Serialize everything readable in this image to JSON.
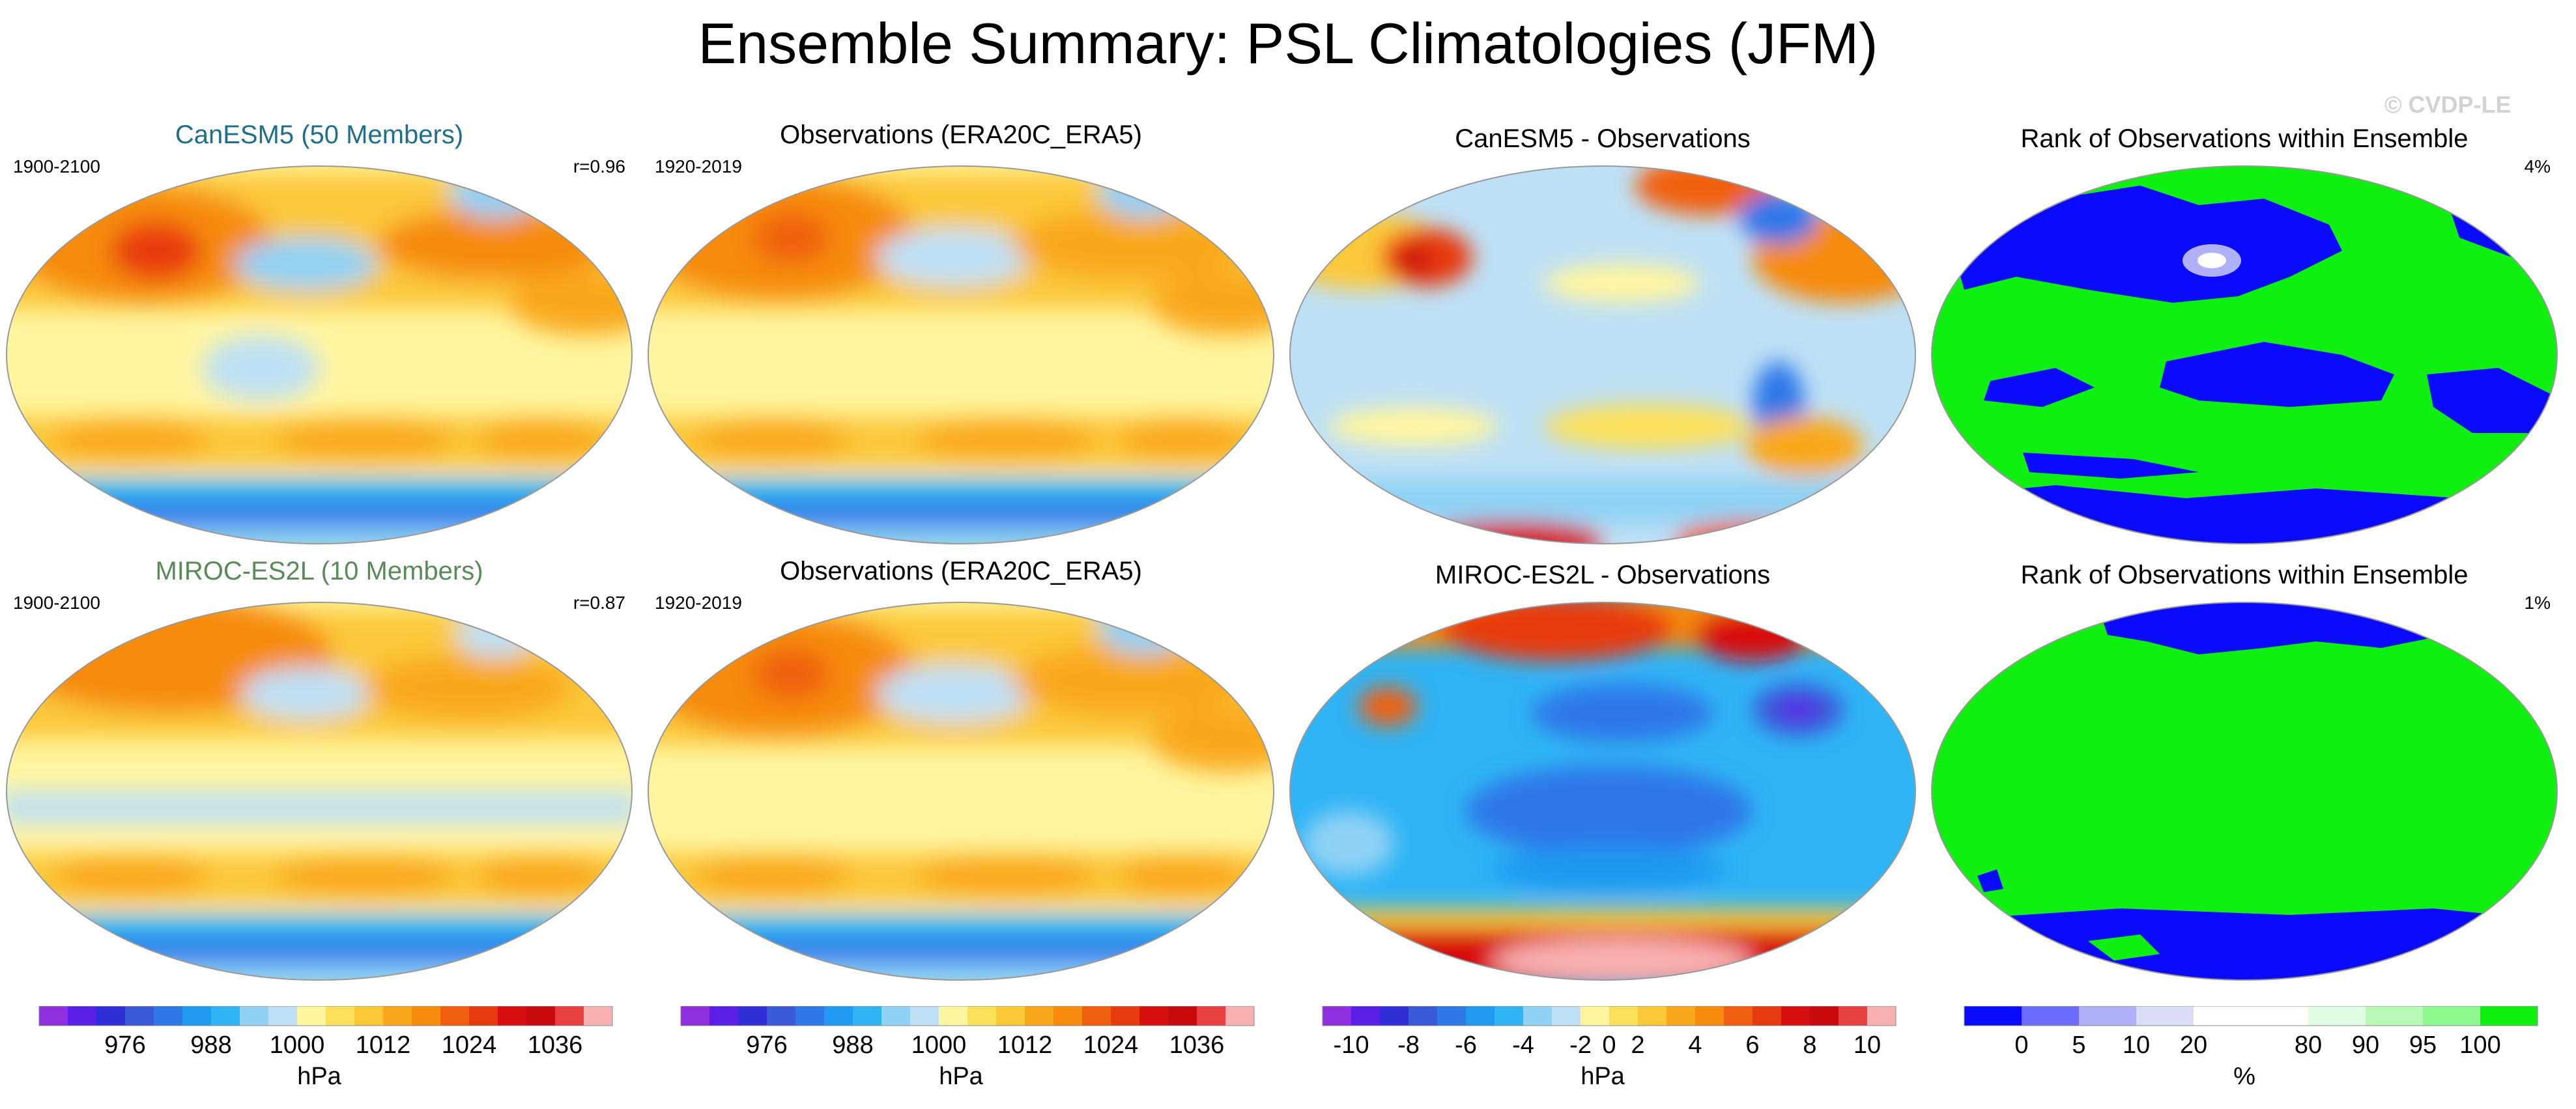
{
  "title": "Ensemble Summary: PSL Climatologies (JFM)",
  "watermark": "© CVDP-LE",
  "rows": [
    {
      "model": {
        "title": "CanESM5 (50 Members)",
        "title_color": "#1f6f8b",
        "period": "1900-2100",
        "corr": "r=0.96"
      },
      "obs": {
        "title": "Observations (ERA20C_ERA5)",
        "period": "1920-2019"
      },
      "diff": {
        "title": "CanESM5 - Observations"
      },
      "rank": {
        "title": "Rank of Observations within Ensemble",
        "pct": "4%"
      }
    },
    {
      "model": {
        "title": "MIROC-ES2L (10 Members)",
        "title_color": "#5a8a5a",
        "period": "1900-2100",
        "corr": "r=0.87"
      },
      "obs": {
        "title": "Observations (ERA20C_ERA5)",
        "period": "1920-2019"
      },
      "diff": {
        "title": "MIROC-ES2L - Observations"
      },
      "rank": {
        "title": "Rank of Observations within Ensemble",
        "pct": "1%"
      }
    }
  ],
  "colorbars": {
    "psl": {
      "colors": [
        "#8f2fe0",
        "#5a1ee8",
        "#2f2fd8",
        "#3a5ad8",
        "#2f78e8",
        "#1f9af0",
        "#2fb4f5",
        "#8fd2f5",
        "#bee0f5",
        "#fff5a0",
        "#fbe05a",
        "#fbc83a",
        "#f9a81c",
        "#f68b10",
        "#f06010",
        "#e83a10",
        "#d80f10",
        "#c80a0a",
        "#e84040",
        "#f9b0b0"
      ],
      "tick_labels": [
        "976",
        "988",
        "1000",
        "1012",
        "1024",
        "1036"
      ],
      "tick_positions": [
        3,
        6,
        9,
        12,
        15,
        18
      ],
      "units": "hPa"
    },
    "diff": {
      "colors": [
        "#8f2fe0",
        "#5a1ee8",
        "#2f2fd8",
        "#3a5ad8",
        "#2f78e8",
        "#1f9af0",
        "#2fb4f5",
        "#8fd2f5",
        "#bee0f5",
        "#fff5a0",
        "#fbe05a",
        "#fbc83a",
        "#f9a81c",
        "#f68b10",
        "#f06010",
        "#e83a10",
        "#d80f10",
        "#c80a0a",
        "#e84040",
        "#f9b0b0"
      ],
      "tick_labels": [
        "-10",
        "-8",
        "-6",
        "-4",
        "-2",
        "0",
        "2",
        "4",
        "6",
        "8",
        "10"
      ],
      "tick_positions": [
        1,
        3,
        5,
        7,
        9,
        10,
        11,
        13,
        15,
        17,
        19
      ],
      "units": "hPa"
    },
    "rank": {
      "colors": [
        "#0a0aff",
        "#6b6bff",
        "#b0b0f8",
        "#dcdcf8",
        "#ffffff",
        "#ffffff",
        "#e2fce2",
        "#b8f8b8",
        "#8ef88e",
        "#10f010"
      ],
      "tick_labels": [
        "0",
        "5",
        "10",
        "20",
        "80",
        "90",
        "95",
        "100"
      ],
      "tick_positions": [
        1,
        2,
        3,
        4,
        6,
        7,
        8,
        9
      ],
      "units": "%"
    }
  }
}
